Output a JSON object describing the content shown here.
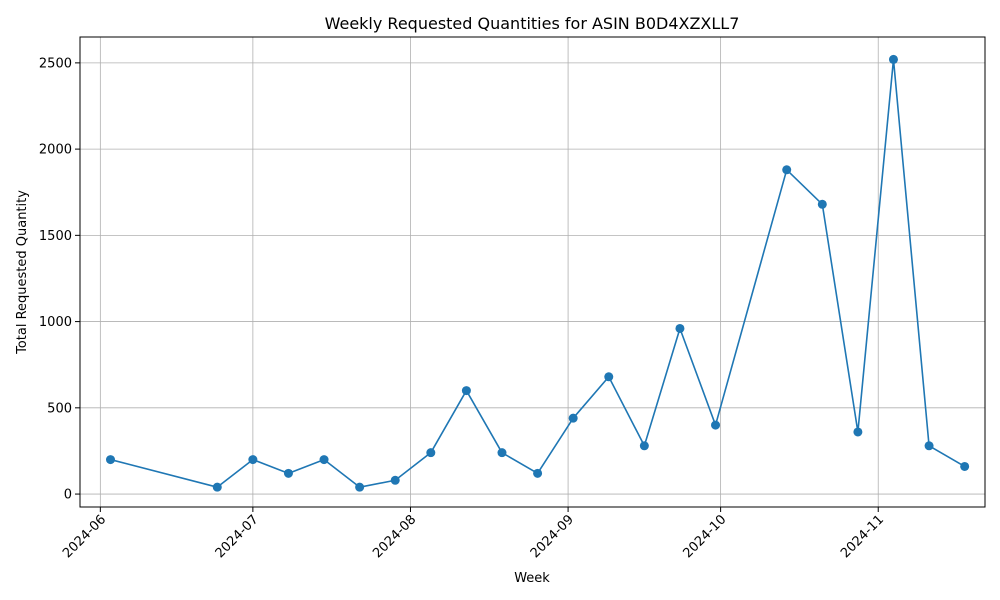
{
  "chart_data": {
    "type": "line",
    "title": "Weekly Requested Quantities for ASIN B0D4XZXLL7",
    "xlabel": "Week",
    "ylabel": "Total Requested Quantity",
    "x_ticks": [
      "2024-06",
      "2024-07",
      "2024-08",
      "2024-09",
      "2024-10",
      "2024-11"
    ],
    "y_ticks": [
      "0",
      "500",
      "1000",
      "1500",
      "2000",
      "2500"
    ],
    "ylim": [
      -75,
      2650
    ],
    "xlim": [
      "2024-05-28",
      "2024-11-22"
    ],
    "grid": true,
    "series_color": "#1f77b4",
    "marker": "circle",
    "series": [
      {
        "x": [
          "2024-06-03",
          "2024-06-24",
          "2024-07-01",
          "2024-07-08",
          "2024-07-15",
          "2024-07-22",
          "2024-07-29",
          "2024-08-05",
          "2024-08-12",
          "2024-08-19",
          "2024-08-26",
          "2024-09-02",
          "2024-09-09",
          "2024-09-16",
          "2024-09-23",
          "2024-09-30",
          "2024-10-14",
          "2024-10-21",
          "2024-10-28",
          "2024-11-04",
          "2024-11-11",
          "2024-11-18"
        ],
        "values": [
          200,
          40,
          200,
          120,
          200,
          40,
          80,
          240,
          600,
          240,
          120,
          440,
          680,
          280,
          960,
          400,
          1880,
          1680,
          360,
          2520,
          280,
          160
        ]
      }
    ]
  }
}
